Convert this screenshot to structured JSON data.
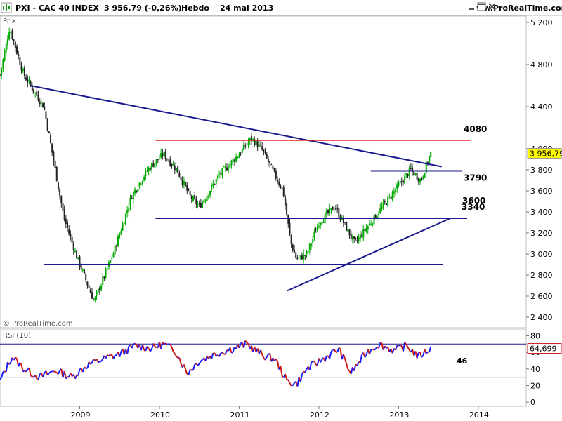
{
  "header": {
    "title": "PXI - CAC 40 INDEX",
    "quote": "3 956,79 (-0,26%)",
    "period": "Hebdo",
    "date": "24 mai 2013",
    "site": "www.ProRealTime.com",
    "icons": [
      "minimize-icon",
      "maximize-icon",
      "close-icon"
    ]
  },
  "copyright": "© ProRealTime.com",
  "colors": {
    "candle_up": "#00aa00",
    "candle_down": "#222222",
    "trendline": "#1b1b8f",
    "resistance": "#e02020",
    "rsi_up": "#1a1aff",
    "rsi_down": "#cc1a1a",
    "badge_fill": "#ffff00"
  },
  "chart_data": [
    {
      "type": "candlestick",
      "title": "",
      "panel_label": "Prix",
      "last_value_label": "3 956,79",
      "x": [
        "2009",
        "2010",
        "2011",
        "2012",
        "2013",
        "2014"
      ],
      "xlim": [
        2008.0,
        2014.6
      ],
      "ylim": [
        2300,
        5260
      ],
      "y_ticks": [
        {
          "value": 5200,
          "label": "5 200"
        },
        {
          "value": 4800,
          "label": "4 800"
        },
        {
          "value": 4400,
          "label": "4 400"
        },
        {
          "value": 4000,
          "label": "4 000"
        },
        {
          "value": 3800,
          "label": "3 800"
        },
        {
          "value": 3600,
          "label": "3 600"
        },
        {
          "value": 3400,
          "label": "3 400"
        },
        {
          "value": 3200,
          "label": "3 200"
        },
        {
          "value": 3000,
          "label": "3 000"
        },
        {
          "value": 2800,
          "label": "2 800"
        },
        {
          "value": 2600,
          "label": "2 600"
        },
        {
          "value": 2400,
          "label": "2 400"
        }
      ],
      "price_path": [
        [
          2008.0,
          4700
        ],
        [
          2008.12,
          5150
        ],
        [
          2008.3,
          4700
        ],
        [
          2008.55,
          4400
        ],
        [
          2008.8,
          3350
        ],
        [
          2008.95,
          3000
        ],
        [
          2009.18,
          2550
        ],
        [
          2009.42,
          3000
        ],
        [
          2009.65,
          3550
        ],
        [
          2009.85,
          3800
        ],
        [
          2010.05,
          3950
        ],
        [
          2010.22,
          3800
        ],
        [
          2010.38,
          3550
        ],
        [
          2010.5,
          3450
        ],
        [
          2010.75,
          3750
        ],
        [
          2011.0,
          3950
        ],
        [
          2011.15,
          4100
        ],
        [
          2011.28,
          4000
        ],
        [
          2011.55,
          3600
        ],
        [
          2011.65,
          3100
        ],
        [
          2011.72,
          2950
        ],
        [
          2011.85,
          3000
        ],
        [
          2012.0,
          3300
        ],
        [
          2012.2,
          3450
        ],
        [
          2012.45,
          3100
        ],
        [
          2012.6,
          3250
        ],
        [
          2012.8,
          3450
        ],
        [
          2012.95,
          3600
        ],
        [
          2013.15,
          3800
        ],
        [
          2013.28,
          3700
        ],
        [
          2013.4,
          3956.79
        ]
      ],
      "lines": [
        {
          "kind": "trend",
          "from": [
            2008.38,
            4600
          ],
          "to": [
            2013.54,
            3830
          ]
        },
        {
          "kind": "resistance",
          "from": [
            2009.95,
            4080
          ],
          "to": [
            2013.9,
            4080
          ]
        },
        {
          "kind": "support",
          "from": [
            2012.65,
            3790
          ],
          "to": [
            2013.8,
            3790
          ]
        },
        {
          "kind": "support",
          "from": [
            2009.95,
            3340
          ],
          "to": [
            2013.86,
            3340
          ]
        },
        {
          "kind": "support",
          "from": [
            2008.55,
            2900
          ],
          "to": [
            2013.56,
            2900
          ]
        },
        {
          "kind": "trend",
          "from": [
            2011.6,
            2650
          ],
          "to": [
            2013.65,
            3340
          ]
        }
      ],
      "annotations": [
        {
          "text": "4080",
          "value": 4080
        },
        {
          "text": "3790",
          "value": 3790
        },
        {
          "text": "3600",
          "value": 3600
        },
        {
          "text": "3340",
          "value": 3340
        }
      ]
    },
    {
      "type": "line",
      "title": "",
      "panel_label": "RSI (10)",
      "last_value_label": "64,699",
      "xlim": [
        2008.0,
        2014.6
      ],
      "ylim": [
        -5,
        88
      ],
      "y_ticks": [
        {
          "value": 80,
          "label": "80"
        },
        {
          "value": 60,
          "label": "60"
        },
        {
          "value": 40,
          "label": "40"
        },
        {
          "value": 20,
          "label": "20"
        },
        {
          "value": 0,
          "label": "0"
        }
      ],
      "levels": [
        70,
        30
      ],
      "annotation": "46",
      "rsi_path": [
        [
          2008.0,
          25
        ],
        [
          2008.15,
          55
        ],
        [
          2008.3,
          40
        ],
        [
          2008.5,
          30
        ],
        [
          2008.7,
          38
        ],
        [
          2008.9,
          30
        ],
        [
          2009.1,
          45
        ],
        [
          2009.3,
          52
        ],
        [
          2009.5,
          58
        ],
        [
          2009.7,
          68
        ],
        [
          2009.9,
          65
        ],
        [
          2010.05,
          70
        ],
        [
          2010.2,
          62
        ],
        [
          2010.35,
          35
        ],
        [
          2010.5,
          50
        ],
        [
          2010.7,
          58
        ],
        [
          2010.9,
          64
        ],
        [
          2011.1,
          70
        ],
        [
          2011.3,
          56
        ],
        [
          2011.45,
          52
        ],
        [
          2011.6,
          25
        ],
        [
          2011.72,
          22
        ],
        [
          2011.85,
          40
        ],
        [
          2012.05,
          52
        ],
        [
          2012.25,
          64
        ],
        [
          2012.4,
          35
        ],
        [
          2012.6,
          60
        ],
        [
          2012.75,
          70
        ],
        [
          2012.95,
          62
        ],
        [
          2013.1,
          68
        ],
        [
          2013.25,
          55
        ],
        [
          2013.4,
          64.7
        ]
      ]
    }
  ]
}
